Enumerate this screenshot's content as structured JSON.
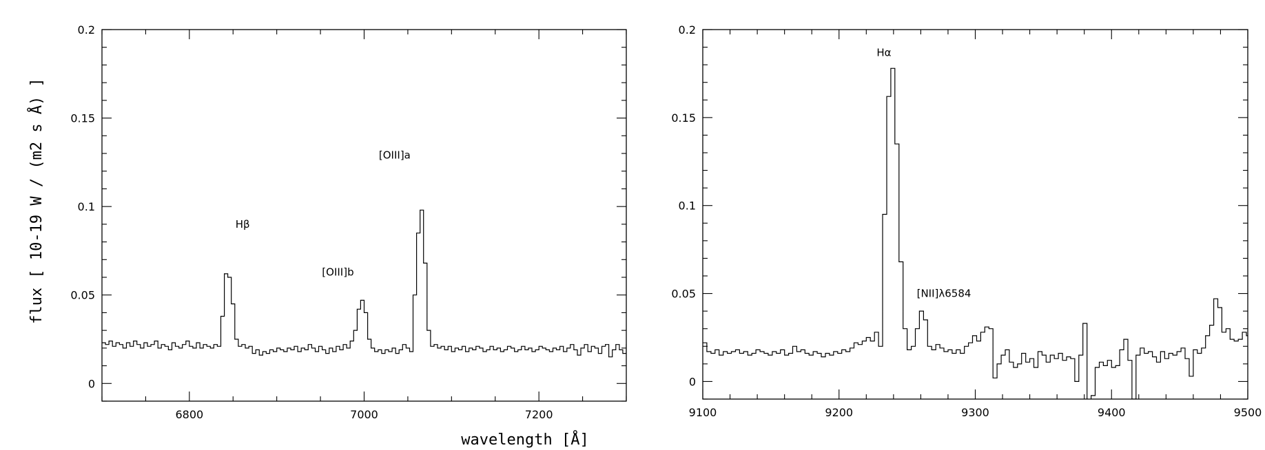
{
  "chart_data": [
    {
      "type": "line",
      "style": "step",
      "ylabel": "flux [ 10-19 W / (m2 s Å) ]",
      "xlabel": "wavelength [Å]",
      "xlim": [
        6700,
        7300
      ],
      "ylim": [
        -0.01,
        0.2
      ],
      "xticks": [
        6800,
        7000,
        7200
      ],
      "yticks": [
        0,
        0.05,
        0.1,
        0.15,
        0.2
      ],
      "ytick_labels": [
        "0",
        "0.05",
        "0.1",
        "0.15",
        "0.2"
      ],
      "annotations": [
        {
          "text": "Hβ",
          "x": 6861,
          "y": 0.088
        },
        {
          "text": "[OIII]b",
          "x": 6970,
          "y": 0.061
        },
        {
          "text": "[OIII]a",
          "x": 7035,
          "y": 0.127
        }
      ],
      "series": [
        {
          "x_start": 6700,
          "x_step": 4,
          "values": [
            0.023,
            0.022,
            0.024,
            0.021,
            0.023,
            0.022,
            0.02,
            0.023,
            0.021,
            0.024,
            0.022,
            0.02,
            0.023,
            0.021,
            0.022,
            0.024,
            0.02,
            0.022,
            0.021,
            0.019,
            0.023,
            0.021,
            0.02,
            0.022,
            0.024,
            0.021,
            0.02,
            0.023,
            0.02,
            0.022,
            0.021,
            0.02,
            0.022,
            0.021,
            0.038,
            0.062,
            0.06,
            0.045,
            0.025,
            0.021,
            0.022,
            0.02,
            0.021,
            0.017,
            0.019,
            0.016,
            0.018,
            0.017,
            0.019,
            0.018,
            0.02,
            0.019,
            0.018,
            0.02,
            0.019,
            0.021,
            0.018,
            0.02,
            0.019,
            0.022,
            0.02,
            0.018,
            0.021,
            0.019,
            0.017,
            0.02,
            0.018,
            0.021,
            0.019,
            0.022,
            0.02,
            0.024,
            0.03,
            0.042,
            0.047,
            0.04,
            0.025,
            0.02,
            0.018,
            0.019,
            0.017,
            0.019,
            0.018,
            0.02,
            0.017,
            0.019,
            0.022,
            0.02,
            0.018,
            0.05,
            0.085,
            0.098,
            0.068,
            0.03,
            0.021,
            0.022,
            0.02,
            0.021,
            0.019,
            0.021,
            0.018,
            0.02,
            0.019,
            0.021,
            0.018,
            0.02,
            0.019,
            0.021,
            0.02,
            0.018,
            0.019,
            0.021,
            0.019,
            0.02,
            0.018,
            0.019,
            0.021,
            0.02,
            0.018,
            0.019,
            0.021,
            0.019,
            0.02,
            0.018,
            0.019,
            0.021,
            0.02,
            0.019,
            0.018,
            0.02,
            0.019,
            0.021,
            0.018,
            0.02,
            0.022,
            0.019,
            0.016,
            0.02,
            0.022,
            0.018,
            0.021,
            0.02,
            0.017,
            0.021,
            0.022,
            0.015,
            0.019,
            0.022,
            0.019,
            0.017,
            0.022
          ]
        }
      ]
    },
    {
      "type": "line",
      "style": "step",
      "xlim": [
        9100,
        9500
      ],
      "ylim": [
        -0.01,
        0.2
      ],
      "xticks": [
        9100,
        9200,
        9300,
        9400,
        9500
      ],
      "yticks": [
        0,
        0.05,
        0.1,
        0.15,
        0.2
      ],
      "ytick_labels": [
        "0",
        "0.05",
        "0.1",
        "0.15",
        "0.2"
      ],
      "annotations": [
        {
          "text": "Hα",
          "x": 9233,
          "y": 0.185
        },
        {
          "text": "[NII]λ6584",
          "x": 9277,
          "y": 0.048
        }
      ],
      "series": [
        {
          "x_start": 9100,
          "x_step": 3,
          "values": [
            0.022,
            0.017,
            0.016,
            0.018,
            0.015,
            0.017,
            0.016,
            0.017,
            0.018,
            0.016,
            0.017,
            0.015,
            0.016,
            0.018,
            0.017,
            0.016,
            0.015,
            0.017,
            0.016,
            0.018,
            0.015,
            0.016,
            0.02,
            0.017,
            0.018,
            0.016,
            0.015,
            0.017,
            0.016,
            0.014,
            0.016,
            0.015,
            0.017,
            0.016,
            0.018,
            0.017,
            0.019,
            0.022,
            0.021,
            0.023,
            0.025,
            0.023,
            0.028,
            0.02,
            0.095,
            0.162,
            0.178,
            0.135,
            0.068,
            0.03,
            0.018,
            0.02,
            0.03,
            0.04,
            0.035,
            0.02,
            0.018,
            0.021,
            0.019,
            0.017,
            0.018,
            0.016,
            0.018,
            0.016,
            0.02,
            0.022,
            0.026,
            0.023,
            0.028,
            0.031,
            0.03,
            0.002,
            0.01,
            0.015,
            0.018,
            0.011,
            0.008,
            0.01,
            0.016,
            0.011,
            0.013,
            0.008,
            0.017,
            0.015,
            0.011,
            0.015,
            0.013,
            0.016,
            0.012,
            0.014,
            0.013,
            0.0,
            0.015,
            0.033,
            -0.012,
            -0.008,
            0.008,
            0.011,
            0.009,
            0.012,
            0.008,
            0.009,
            0.018,
            0.024,
            0.012,
            -0.01,
            0.015,
            0.019,
            0.016,
            0.017,
            0.014,
            0.011,
            0.017,
            0.013,
            0.016,
            0.015,
            0.017,
            0.019,
            0.013,
            0.003,
            0.018,
            0.016,
            0.019,
            0.026,
            0.032,
            0.047,
            0.042,
            0.028,
            0.03,
            0.024,
            0.023,
            0.024,
            0.028,
            0.026,
            0.035,
            0.034,
            0.02,
            0.023,
            0.013,
            0.022,
            0.008,
            0.016,
            0.01,
            0.015,
            0.014
          ]
        }
      ]
    }
  ]
}
